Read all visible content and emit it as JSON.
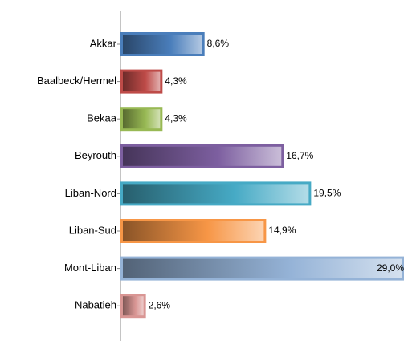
{
  "chart_data": {
    "type": "bar",
    "orientation": "horizontal",
    "categories": [
      "Akkar",
      "Baalbeck/Hermel",
      "Bekaa",
      "Beyrouth",
      "Liban-Nord",
      "Liban-Sud",
      "Mont-Liban",
      "Nabatieh"
    ],
    "values": [
      8.6,
      4.3,
      4.3,
      16.7,
      19.5,
      14.9,
      29.0,
      2.6
    ],
    "value_labels": [
      "8,6%",
      "4,3%",
      "4,3%",
      "16,7%",
      "19,5%",
      "14,9%",
      "29,0%",
      "2,6%"
    ],
    "colors": [
      "#4a7ebb",
      "#be4b48",
      "#98b954",
      "#7d5fa0",
      "#46aac5",
      "#f79646",
      "#95b3d7",
      "#d99694"
    ],
    "xlim": [
      0,
      29
    ]
  }
}
